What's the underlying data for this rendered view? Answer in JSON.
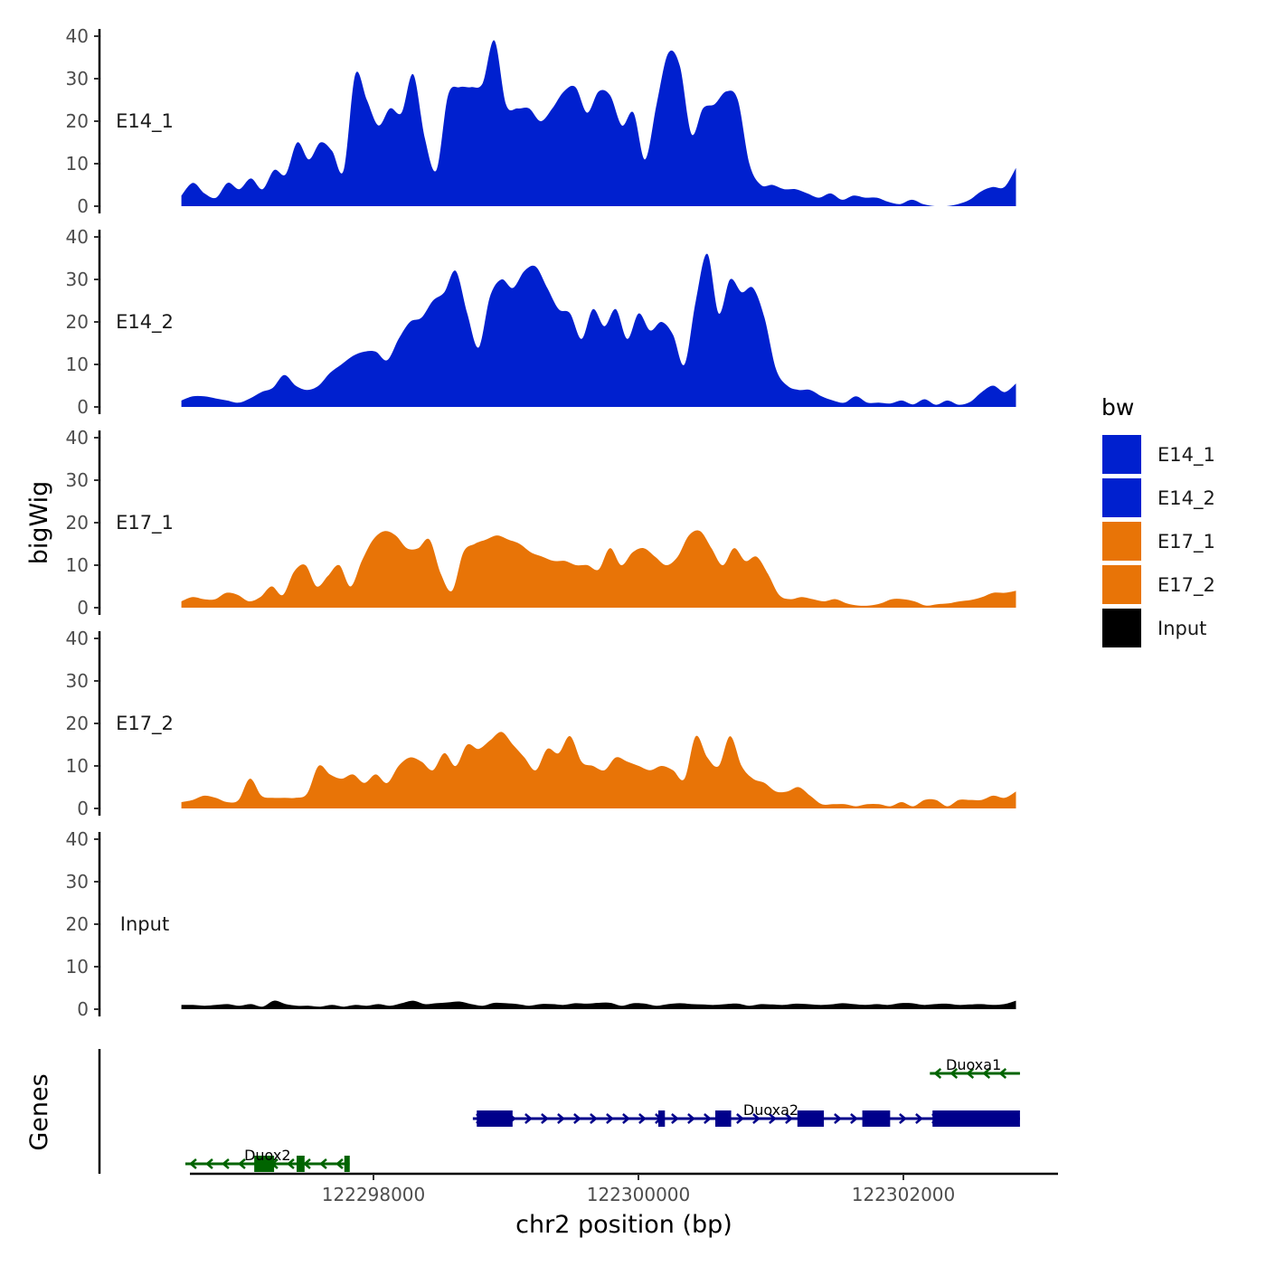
{
  "chart_data": {
    "type": "area",
    "title": "",
    "xlabel": "chr2 position (bp)",
    "ylabel": "bigWig",
    "genes_label": "Genes",
    "xlim": [
      122296500,
      122303300
    ],
    "x_range_data": [
      122296550,
      122302850
    ],
    "x_ticks": [
      122298000,
      122300000,
      122302000
    ],
    "x_tick_labels": [
      "122298000",
      "122300000",
      "122302000"
    ],
    "ylim": [
      0,
      40
    ],
    "y_ticks": [
      0,
      10,
      20,
      30,
      40
    ],
    "y_tick_labels": [
      "0",
      "10",
      "20",
      "30",
      "40"
    ],
    "legend": {
      "title": "bw",
      "entries": [
        {
          "label": "E14_1",
          "color": "#0020CF"
        },
        {
          "label": "E14_2",
          "color": "#0020CF"
        },
        {
          "label": "E17_1",
          "color": "#E87407"
        },
        {
          "label": "E17_2",
          "color": "#E87407"
        },
        {
          "label": "Input",
          "color": "#000000"
        }
      ]
    },
    "series": [
      {
        "name": "E14_1",
        "color": "#0020CF",
        "values": [
          2.5,
          5.5,
          3,
          2,
          5.5,
          4,
          6.5,
          4,
          8.5,
          7.5,
          15,
          11,
          15,
          13,
          8.5,
          31,
          25,
          19,
          23,
          22,
          31,
          16,
          8.5,
          26,
          28,
          28,
          29,
          39,
          24,
          23,
          23,
          20,
          23,
          27,
          28,
          22,
          27,
          26,
          19,
          22,
          11,
          24,
          36,
          33,
          17,
          23,
          24,
          27,
          25,
          10,
          5,
          5,
          4,
          4,
          3,
          2,
          3,
          1.5,
          2.5,
          2,
          2,
          1,
          0.5,
          1.5,
          0.5,
          0,
          0,
          0.5,
          1.5,
          3.5,
          4.5,
          4.5,
          9
        ]
      },
      {
        "name": "E14_2",
        "color": "#0020CF",
        "values": [
          1.5,
          2.5,
          2.5,
          2,
          1.5,
          1,
          2,
          3.5,
          4.5,
          7.5,
          5,
          4,
          5,
          8,
          10,
          12,
          13,
          13,
          11,
          16,
          20,
          21,
          25,
          27,
          32,
          22,
          14,
          26,
          30,
          28,
          32,
          33,
          28,
          23,
          22,
          16,
          23,
          19,
          23,
          16,
          22,
          18,
          20,
          17,
          10,
          25,
          36,
          22,
          30,
          27,
          28,
          21,
          9,
          5,
          4,
          4,
          2.5,
          1.5,
          1,
          2.5,
          1,
          1,
          0.8,
          1.5,
          0.6,
          1.8,
          0.5,
          1.5,
          0.5,
          1.2,
          3.5,
          5,
          3.5,
          5.5
        ]
      },
      {
        "name": "E17_1",
        "color": "#E87407",
        "values": [
          1.5,
          2.5,
          2,
          2,
          3.5,
          3,
          1.5,
          2.5,
          5,
          3,
          8.5,
          10,
          5,
          7.5,
          10,
          5,
          11,
          16,
          18,
          17,
          14,
          14,
          16,
          8,
          4,
          13,
          15,
          16,
          17,
          16,
          15,
          13,
          12,
          11,
          11,
          10,
          10,
          9,
          14,
          10,
          13,
          14,
          12,
          10,
          12,
          17,
          18,
          14,
          10,
          14,
          11,
          12,
          8,
          3,
          2,
          2.5,
          2,
          1.5,
          2,
          1,
          0.5,
          0.5,
          1,
          2,
          2,
          1.5,
          0.5,
          0.8,
          1,
          1.5,
          1.8,
          2.5,
          3.5,
          3.5,
          4
        ]
      },
      {
        "name": "E17_2",
        "color": "#E87407",
        "values": [
          1.5,
          2,
          3,
          2.5,
          1.5,
          2,
          7,
          3,
          2.5,
          2.5,
          2.5,
          3.5,
          10,
          8,
          7,
          8,
          6,
          8,
          6,
          10,
          12,
          11,
          9,
          13,
          10,
          15,
          14,
          16,
          18,
          15,
          12,
          9,
          14,
          13,
          17,
          11,
          10,
          9,
          12,
          11,
          10,
          9,
          10,
          9,
          7,
          17,
          12,
          10,
          17,
          10,
          7,
          6,
          4,
          4,
          5,
          3,
          1,
          1,
          1,
          0.5,
          1,
          1,
          0.5,
          1.5,
          0.5,
          2,
          2,
          0.5,
          2,
          2,
          2,
          3,
          2.5,
          4
        ]
      },
      {
        "name": "Input",
        "color": "#000000",
        "values": [
          1,
          1,
          0.8,
          1,
          1.2,
          0.8,
          1.2,
          0.6,
          2,
          1.2,
          0.8,
          0.8,
          0.6,
          1,
          0.6,
          1,
          0.8,
          1.2,
          0.8,
          1.4,
          2,
          1.2,
          1.4,
          1.6,
          1.8,
          1.2,
          0.8,
          1.5,
          1.4,
          1.2,
          0.8,
          1.2,
          1.2,
          1,
          1.4,
          1.3,
          1.5,
          1.5,
          0.8,
          1.4,
          1.3,
          0.8,
          1.2,
          1.4,
          1.2,
          1.1,
          1,
          1.2,
          1.3,
          0.8,
          1.2,
          1.1,
          1,
          1.3,
          1.2,
          1,
          1.1,
          1.4,
          1.2,
          1,
          1.2,
          1,
          1.4,
          1.4,
          1,
          1.2,
          1.3,
          1,
          1.1,
          1.2,
          1,
          1.2,
          2
        ]
      }
    ],
    "genes": [
      {
        "name": "Duoxa1",
        "strand": "-",
        "color": "#006400",
        "start": 122302200,
        "end": 122302880,
        "exons": []
      },
      {
        "name": "Duoxa2",
        "strand": "+",
        "color": "#00008B",
        "start": 122298750,
        "end": 122302880,
        "exons": [
          [
            122298780,
            122299050
          ],
          [
            122300150,
            122300200
          ],
          [
            122300580,
            122300700
          ],
          [
            122301200,
            122301400
          ],
          [
            122301690,
            122301900
          ],
          [
            122302220,
            122302880
          ]
        ]
      },
      {
        "name": "Duox2",
        "strand": "-",
        "color": "#006400",
        "start": 122296580,
        "end": 122297820,
        "exons": [
          [
            122297100,
            122297250
          ],
          [
            122297420,
            122297480
          ],
          [
            122297780,
            122297820
          ]
        ]
      }
    ]
  }
}
